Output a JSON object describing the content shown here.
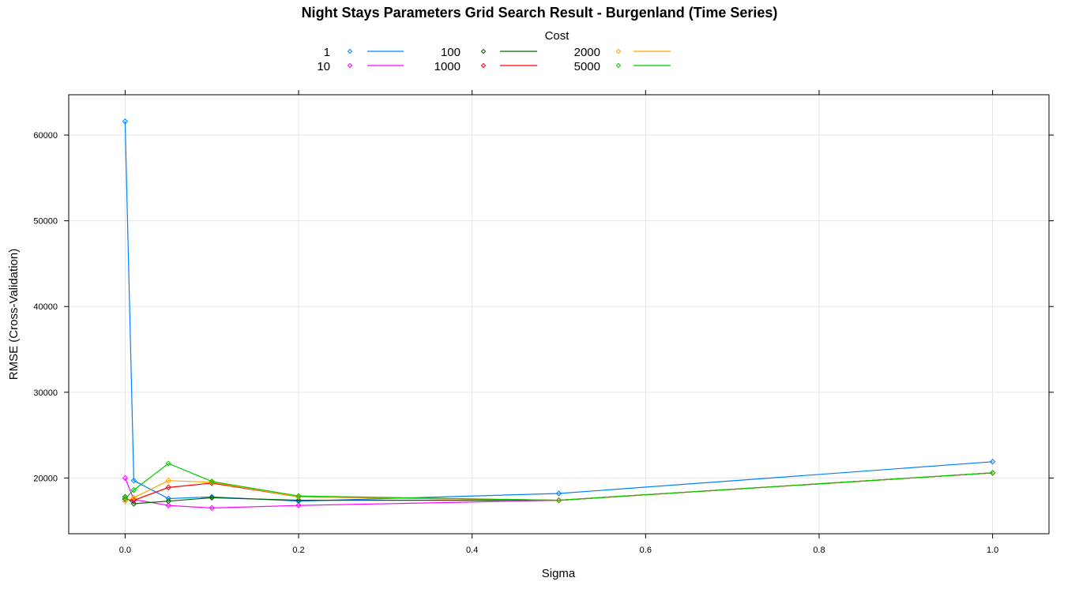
{
  "chart_data": {
    "type": "line",
    "title": "Night Stays Parameters Grid Search Result - Burgenland (Time Series)",
    "xlabel": "Sigma",
    "ylabel": "RMSE (Cross-Validation)",
    "xlim": [
      -0.065,
      1.065
    ],
    "ylim": [
      13500,
      64700
    ],
    "x_ticks": [
      0.0,
      0.2,
      0.4,
      0.6,
      0.8,
      1.0
    ],
    "x_tick_labels": [
      "0.0",
      "0.2",
      "0.4",
      "0.6",
      "0.8",
      "1.0"
    ],
    "y_ticks": [
      20000,
      30000,
      40000,
      50000,
      60000
    ],
    "y_tick_labels": [
      "20000",
      "30000",
      "40000",
      "50000",
      "60000"
    ],
    "grid": true,
    "legend_title": "Cost",
    "legend_position": "top",
    "x": [
      0.0,
      0.01,
      0.05,
      0.1,
      0.2,
      0.5,
      1.0
    ],
    "series": [
      {
        "name": "1",
        "color": "#0080ff",
        "values": [
          61600,
          19700,
          17600,
          17800,
          17300,
          18200,
          21900
        ]
      },
      {
        "name": "10",
        "color": "#ff00ff",
        "values": [
          20000,
          17500,
          16800,
          16500,
          16800,
          17400,
          20600
        ]
      },
      {
        "name": "100",
        "color": "#006400",
        "values": [
          17800,
          17000,
          17300,
          17700,
          17400,
          17400,
          20600
        ]
      },
      {
        "name": "1000",
        "color": "#ff0000",
        "values": [
          17500,
          17400,
          18900,
          19400,
          17800,
          17400,
          20600
        ]
      },
      {
        "name": "2000",
        "color": "#ffa500",
        "values": [
          17300,
          17700,
          19700,
          19500,
          17800,
          17400,
          20600
        ]
      },
      {
        "name": "5000",
        "color": "#00c800",
        "values": [
          17600,
          18600,
          21700,
          19600,
          17900,
          17400,
          20600
        ]
      }
    ]
  }
}
